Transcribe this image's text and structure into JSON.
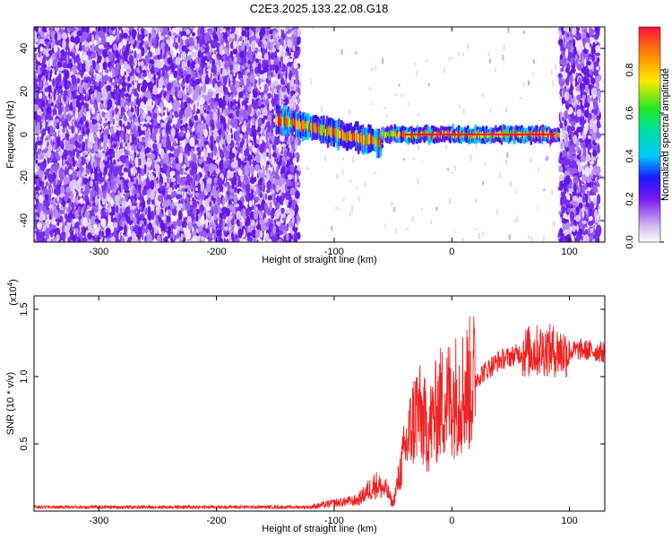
{
  "figure_title": "C2E3.2025.133.22.08.G18",
  "chart_data": [
    {
      "type": "heatmap",
      "xlabel": "Height of straight line (km)",
      "ylabel": "Frequency (Hz)",
      "xlim": [
        -355,
        130
      ],
      "ylim": [
        -50,
        50
      ],
      "xticks": [
        -300,
        -200,
        -100,
        0,
        100
      ],
      "yticks": [
        -40,
        -20,
        0,
        20,
        40
      ],
      "colorbar": {
        "label": "Normalized spectral amplitude",
        "range": [
          0,
          1
        ],
        "ticks": [
          "0.0",
          "0.2",
          "0.4",
          "0.6",
          "0.8"
        ],
        "tick_values": [
          0.0,
          0.2,
          0.4,
          0.6,
          0.8
        ]
      },
      "regions": [
        {
          "x_range": [
            -355,
            -130
          ],
          "pattern": "broadband noise",
          "freq_range": [
            -50,
            50
          ]
        },
        {
          "x_range": [
            -150,
            -60
          ],
          "pattern": "signal track",
          "freq_center_start": 7,
          "freq_center_end": -4
        },
        {
          "x_range": [
            -60,
            90
          ],
          "pattern": "signal track",
          "freq_center_start": 0,
          "freq_center_end": 0
        },
        {
          "x_range": [
            92,
            125
          ],
          "pattern": "broadband noise",
          "freq_range": [
            -50,
            50
          ]
        }
      ]
    },
    {
      "type": "line",
      "xlabel": "Height of straight line (km)",
      "ylabel": "SNR (10 * v/v)",
      "y_scale_label": "(x10",
      "y_scale_exponent": "4",
      "xlim": [
        -355,
        130
      ],
      "ylim": [
        0,
        1.6
      ],
      "xticks": [
        -300,
        -200,
        -100,
        0,
        100
      ],
      "yticks": [
        "0.5",
        "1.0",
        "1.5"
      ],
      "ytick_values": [
        0.5,
        1.0,
        1.5
      ],
      "color": "#ee2222",
      "trend": [
        {
          "x": -355,
          "y": 0.03
        },
        {
          "x": -120,
          "y": 0.03
        },
        {
          "x": -100,
          "y": 0.06
        },
        {
          "x": -80,
          "y": 0.08
        },
        {
          "x": -65,
          "y": 0.2
        },
        {
          "x": -55,
          "y": 0.15
        },
        {
          "x": -50,
          "y": 0.05
        },
        {
          "x": -40,
          "y": 0.45
        },
        {
          "x": -30,
          "y": 0.75
        },
        {
          "x": -20,
          "y": 0.6
        },
        {
          "x": -10,
          "y": 0.8
        },
        {
          "x": 0,
          "y": 0.85
        },
        {
          "x": 10,
          "y": 0.9
        },
        {
          "x": 25,
          "y": 1.02
        },
        {
          "x": 40,
          "y": 1.12
        },
        {
          "x": 60,
          "y": 1.18
        },
        {
          "x": 80,
          "y": 1.2
        },
        {
          "x": 95,
          "y": 1.18
        },
        {
          "x": 110,
          "y": 1.2
        },
        {
          "x": 130,
          "y": 1.18
        }
      ]
    }
  ]
}
